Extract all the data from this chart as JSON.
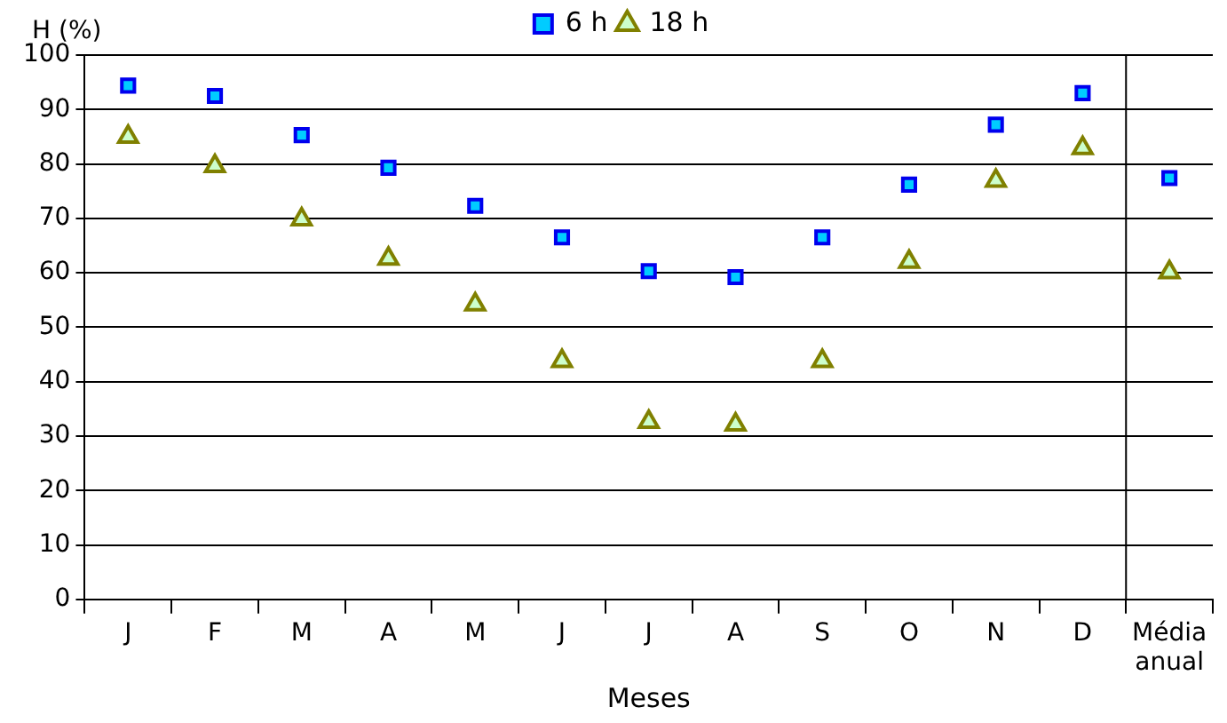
{
  "chart_data": {
    "type": "scatter",
    "ylabel": "H (%)",
    "xlabel": "Meses",
    "categories": [
      "J",
      "F",
      "M",
      "A",
      "M",
      "J",
      "J",
      "A",
      "S",
      "O",
      "N",
      "D",
      "Média anual"
    ],
    "series": [
      {
        "name": "6 h",
        "color": "#00ccff",
        "marker": "square",
        "values": [
          94.4,
          92.5,
          85.3,
          79.3,
          72.3,
          66.5,
          60.3,
          59.2,
          66.5,
          76.2,
          87.2,
          93,
          77.4
        ]
      },
      {
        "name": "18 h",
        "color": "#ccffcc",
        "marker": "triangle",
        "values": [
          85,
          79.6,
          69.8,
          62.6,
          54.2,
          43.8,
          32.6,
          32.1,
          43.8,
          62,
          76.9,
          82.9,
          60.1
        ]
      }
    ],
    "ylim": [
      0,
      100
    ],
    "yticks": [
      0,
      10,
      20,
      30,
      40,
      50,
      60,
      70,
      80,
      90,
      100
    ],
    "grid": "y",
    "legend": "top"
  }
}
